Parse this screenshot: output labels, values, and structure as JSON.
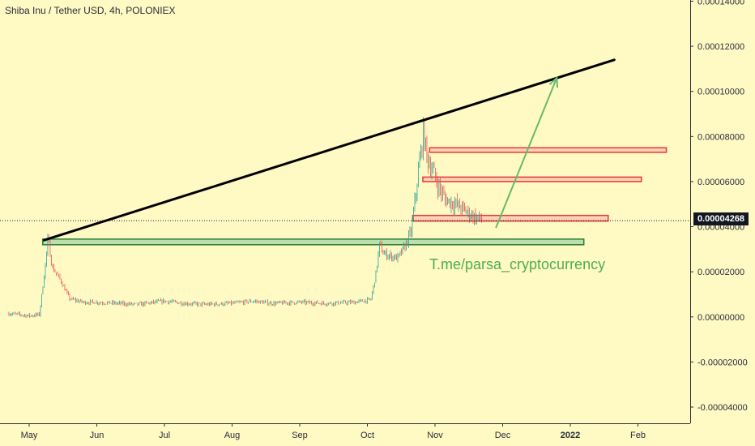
{
  "header": {
    "title": "Shiba Inu / Tether USD, 4h, POLONIEX"
  },
  "watermark": "T.me/parsa_cryptocurrency",
  "last_price_label": "0.00004268",
  "colors": {
    "background": "#fff9c4",
    "up": "#26a69a",
    "down": "#ef5350",
    "green_zone_fill": "#a5d6a7",
    "green_zone_stroke": "#2e7d32",
    "red_zone_fill": "#f8c8b4",
    "red_zone_stroke": "#e53935",
    "trendline": "#000000",
    "arrow": "#66bb6a"
  },
  "chart_data": {
    "type": "candlestick",
    "title": "Shiba Inu / Tether USD, 4h, POLONIEX",
    "ylim": [
      -4.5e-05,
      0.00014
    ],
    "y_ticks": [
      "0.00014000",
      "0.00012000",
      "0.00010000",
      "0.00008000",
      "0.00006000",
      "0.00004000",
      "0.00002000",
      "0.00000000",
      "-0.00002000",
      "-0.00004000"
    ],
    "y_tick_values": [
      0.00014,
      0.00012,
      0.0001,
      8e-05,
      6e-05,
      4e-05,
      2e-05,
      0.0,
      -2e-05,
      -4e-05
    ],
    "x_ticks": [
      {
        "label": "May",
        "t": 0
      },
      {
        "label": "Jun",
        "t": 1
      },
      {
        "label": "Jul",
        "t": 2
      },
      {
        "label": "Aug",
        "t": 3
      },
      {
        "label": "Sep",
        "t": 4
      },
      {
        "label": "Oct",
        "t": 5
      },
      {
        "label": "Nov",
        "t": 6
      },
      {
        "label": "Dec",
        "t": 7
      },
      {
        "label": "2022",
        "t": 8,
        "bold": true
      },
      {
        "label": "Feb",
        "t": 9
      }
    ],
    "last_price": 4.268e-05,
    "price_path": [
      [
        -0.3,
        1.5e-06
      ],
      [
        0.0,
        5e-07
      ],
      [
        0.15,
        1e-06
      ],
      [
        0.22,
        1.8e-05
      ],
      [
        0.28,
        3.5e-05
      ],
      [
        0.34,
        2.2e-05
      ],
      [
        0.45,
        1.7e-05
      ],
      [
        0.6,
        8e-06
      ],
      [
        0.8,
        6.5e-06
      ],
      [
        1.0,
        6.5e-06
      ],
      [
        1.3,
        6e-06
      ],
      [
        1.6,
        5.5e-06
      ],
      [
        2.0,
        7e-06
      ],
      [
        2.3,
        6e-06
      ],
      [
        2.6,
        5.5e-06
      ],
      [
        3.0,
        6e-06
      ],
      [
        3.3,
        7e-06
      ],
      [
        3.6,
        6e-06
      ],
      [
        4.0,
        6.5e-06
      ],
      [
        4.4,
        6e-06
      ],
      [
        4.8,
        6.5e-06
      ],
      [
        5.05,
        7.5e-06
      ],
      [
        5.12,
        1.8e-05
      ],
      [
        5.18,
        3.2e-05
      ],
      [
        5.24,
        2.8e-05
      ],
      [
        5.35,
        2.7e-05
      ],
      [
        5.45,
        2.6e-05
      ],
      [
        5.55,
        3.1e-05
      ],
      [
        5.65,
        3.8e-05
      ],
      [
        5.76,
        6.6e-05
      ],
      [
        5.83,
        8.2e-05
      ],
      [
        5.88,
        7.1e-05
      ],
      [
        5.95,
        6.6e-05
      ],
      [
        6.05,
        5.8e-05
      ],
      [
        6.15,
        5.2e-05
      ],
      [
        6.3,
        5e-05
      ],
      [
        6.45,
        4.7e-05
      ],
      [
        6.6,
        4.4e-05
      ],
      [
        6.7,
        4.3e-05
      ]
    ],
    "annotations": {
      "trendline": {
        "from": {
          "t": 0.22,
          "y": 3.4e-05
        },
        "to": {
          "t": 8.65,
          "y": 0.000114
        }
      },
      "green_zone": {
        "t_start": 0.2,
        "t_end": 8.2,
        "y_low": 3.2e-05,
        "y_high": 3.45e-05
      },
      "red_zones": [
        {
          "t_start": 5.67,
          "t_end": 8.56,
          "y_low": 4.25e-05,
          "y_high": 4.5e-05
        },
        {
          "t_start": 5.82,
          "t_end": 9.05,
          "y_low": 6e-05,
          "y_high": 6.2e-05
        },
        {
          "t_start": 5.92,
          "t_end": 9.42,
          "y_low": 7.3e-05,
          "y_high": 7.5e-05
        }
      ],
      "arrow": {
        "from": {
          "t": 6.9,
          "y": 3.95e-05
        },
        "to": {
          "t": 7.8,
          "y": 0.000106
        }
      }
    }
  }
}
